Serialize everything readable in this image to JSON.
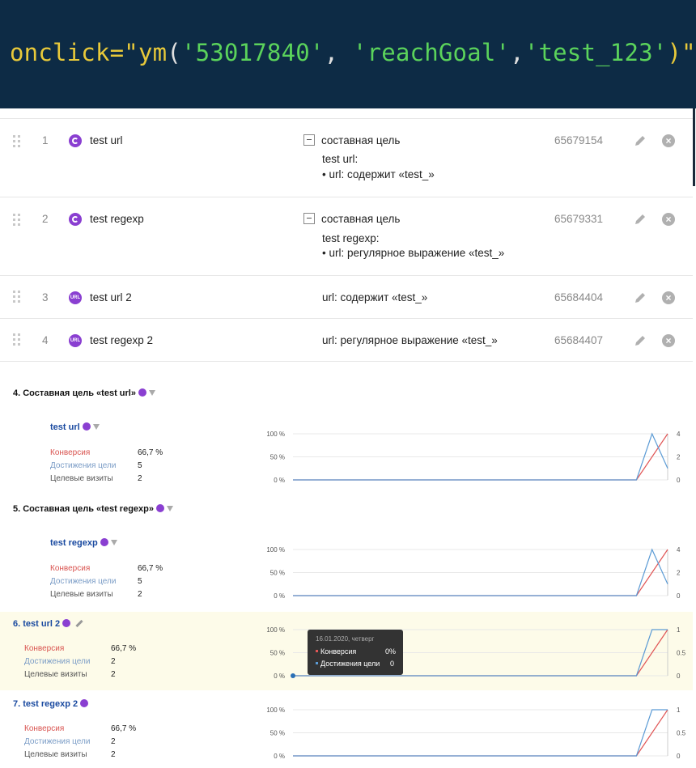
{
  "code": {
    "attr": "onclick",
    "eq": "=\"",
    "fn": "ym",
    "open": "(",
    "arg1": "'53017840'",
    "sep1": ", ",
    "arg2": "'reachGoal'",
    "sep2": ",",
    "arg3": "'test_123'",
    "close": ")\""
  },
  "goals": [
    {
      "num": "1",
      "name": "test url",
      "icon": "composite-goal-icon",
      "condition": "составная цель",
      "sub": "test url:",
      "bullet": "•  url: содержит «test_»",
      "id": "65679154"
    },
    {
      "num": "2",
      "name": "test regexp",
      "icon": "composite-goal-icon",
      "condition": "составная цель",
      "sub": "test regexp:",
      "bullet": "•  url: регулярное выражение «test_»",
      "id": "65679331"
    },
    {
      "num": "3",
      "name": "test url 2",
      "icon": "url-goal-icon",
      "icon_text": "URL",
      "condition": "url: содержит «test_»",
      "id": "65684404"
    },
    {
      "num": "4",
      "name": "test regexp 2",
      "icon": "url-goal-icon",
      "icon_text": "URL",
      "condition": "url: регулярное выражение «test_»",
      "id": "65684407"
    }
  ],
  "reports": [
    {
      "title": "4. Составная цель «test url»",
      "sub": "test url",
      "conv_label": "Конверсия",
      "conv": "66,7 %",
      "ach_label": "Достижения цели",
      "ach": "5",
      "vis_label": "Целевые визиты",
      "vis": "2"
    },
    {
      "title": "5. Составная цель «test regexp»",
      "sub": "test regexp",
      "conv_label": "Конверсия",
      "conv": "66,7 %",
      "ach_label": "Достижения цели",
      "ach": "5",
      "vis_label": "Целевые визиты",
      "vis": "2"
    },
    {
      "title": "6. test url 2",
      "conv_label": "Конверсия",
      "conv": "66,7 %",
      "ach_label": "Достижения цели",
      "ach": "2",
      "vis_label": "Целевые визиты",
      "vis": "2"
    },
    {
      "title": "7. test regexp 2",
      "conv_label": "Конверсия",
      "conv": "66,7 %",
      "ach_label": "Достижения цели",
      "ach": "2",
      "vis_label": "Целевые визиты",
      "vis": "2"
    }
  ],
  "tooltip": {
    "date": "16.01.2020, четверг",
    "conv_label": "Конверсия",
    "conv": "0%",
    "ach_label": "Достижения цели",
    "ach": "0"
  },
  "chart_data": [
    {
      "type": "line",
      "y_left_ticks": [
        "100 %",
        "50 %",
        "0 %"
      ],
      "y_right_ticks": [
        "4",
        "2",
        "0"
      ],
      "y_left_lim": [
        0,
        100
      ],
      "y_right_lim": [
        0,
        4
      ],
      "series": [
        {
          "name": "Конверсия",
          "axis": "left",
          "color": "#e05555",
          "values": [
            0,
            0,
            0,
            0,
            0,
            0,
            0,
            0,
            0,
            0,
            0,
            0,
            0,
            0,
            0,
            0,
            0,
            0,
            0,
            0,
            0,
            0,
            0,
            50,
            100
          ]
        },
        {
          "name": "Достижения цели",
          "axis": "right",
          "color": "#5b9bd5",
          "values": [
            0,
            0,
            0,
            0,
            0,
            0,
            0,
            0,
            0,
            0,
            0,
            0,
            0,
            0,
            0,
            0,
            0,
            0,
            0,
            0,
            0,
            0,
            0,
            4,
            1
          ]
        }
      ]
    },
    {
      "type": "line",
      "y_left_ticks": [
        "100 %",
        "50 %",
        "0 %"
      ],
      "y_right_ticks": [
        "4",
        "2",
        "0"
      ],
      "y_left_lim": [
        0,
        100
      ],
      "y_right_lim": [
        0,
        4
      ],
      "series": [
        {
          "name": "Конверсия",
          "axis": "left",
          "color": "#e05555",
          "values": [
            0,
            0,
            0,
            0,
            0,
            0,
            0,
            0,
            0,
            0,
            0,
            0,
            0,
            0,
            0,
            0,
            0,
            0,
            0,
            0,
            0,
            0,
            0,
            50,
            100
          ]
        },
        {
          "name": "Достижения цели",
          "axis": "right",
          "color": "#5b9bd5",
          "values": [
            0,
            0,
            0,
            0,
            0,
            0,
            0,
            0,
            0,
            0,
            0,
            0,
            0,
            0,
            0,
            0,
            0,
            0,
            0,
            0,
            0,
            0,
            0,
            4,
            1
          ]
        }
      ]
    },
    {
      "type": "line",
      "y_left_ticks": [
        "100 %",
        "50 %",
        "0 %"
      ],
      "y_right_ticks": [
        "1",
        "0.5",
        "0"
      ],
      "y_left_lim": [
        0,
        100
      ],
      "y_right_lim": [
        0,
        1
      ],
      "series": [
        {
          "name": "Конверсия",
          "axis": "left",
          "color": "#e05555",
          "values": [
            0,
            0,
            0,
            0,
            0,
            0,
            0,
            0,
            0,
            0,
            0,
            0,
            0,
            0,
            0,
            0,
            0,
            0,
            0,
            0,
            0,
            0,
            0,
            50,
            100
          ]
        },
        {
          "name": "Достижения цели",
          "axis": "right",
          "color": "#5b9bd5",
          "values": [
            0,
            0,
            0,
            0,
            0,
            0,
            0,
            0,
            0,
            0,
            0,
            0,
            0,
            0,
            0,
            0,
            0,
            0,
            0,
            0,
            0,
            0,
            0,
            1,
            1
          ]
        }
      ]
    },
    {
      "type": "line",
      "y_left_ticks": [
        "100 %",
        "50 %",
        "0 %"
      ],
      "y_right_ticks": [
        "1",
        "0.5",
        "0"
      ],
      "y_left_lim": [
        0,
        100
      ],
      "y_right_lim": [
        0,
        1
      ],
      "series": [
        {
          "name": "Конверсия",
          "axis": "left",
          "color": "#e05555",
          "values": [
            0,
            0,
            0,
            0,
            0,
            0,
            0,
            0,
            0,
            0,
            0,
            0,
            0,
            0,
            0,
            0,
            0,
            0,
            0,
            0,
            0,
            0,
            0,
            50,
            100
          ]
        },
        {
          "name": "Достижения цели",
          "axis": "right",
          "color": "#5b9bd5",
          "values": [
            0,
            0,
            0,
            0,
            0,
            0,
            0,
            0,
            0,
            0,
            0,
            0,
            0,
            0,
            0,
            0,
            0,
            0,
            0,
            0,
            0,
            0,
            0,
            1,
            1
          ]
        }
      ]
    }
  ]
}
